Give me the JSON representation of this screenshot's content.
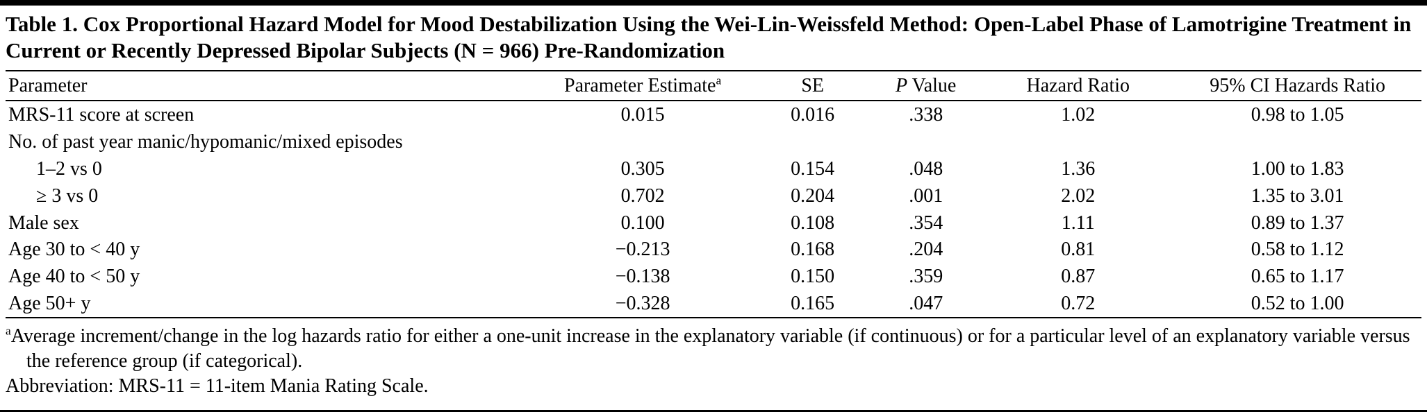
{
  "table": {
    "title": "Table 1. Cox Proportional Hazard Model for Mood Destabilization Using the Wei-Lin-Weissfeld Method: Open-Label Phase of Lamotrigine Treatment in Current or Recently Depressed Bipolar Subjects (N = 966) Pre-Randomization",
    "columns": [
      {
        "label": "Parameter"
      },
      {
        "label": "Parameter Estimate",
        "sup": "a"
      },
      {
        "label": "SE"
      },
      {
        "label": "P Value",
        "italic_prefix": "P"
      },
      {
        "label": "Hazard Ratio"
      },
      {
        "label": "95% CI Hazards Ratio"
      }
    ],
    "rows": [
      {
        "parameter": "MRS-11 score at screen",
        "indent": false,
        "estimate": "0.015",
        "se": "0.016",
        "p_value": ".338",
        "hazard_ratio": "1.02",
        "ci": "0.98 to 1.05"
      },
      {
        "parameter": "No. of past year manic/hypomanic/mixed episodes",
        "indent": false,
        "estimate": "",
        "se": "",
        "p_value": "",
        "hazard_ratio": "",
        "ci": ""
      },
      {
        "parameter": "1–2 vs 0",
        "indent": true,
        "estimate": "0.305",
        "se": "0.154",
        "p_value": ".048",
        "hazard_ratio": "1.36",
        "ci": "1.00 to 1.83"
      },
      {
        "parameter": "≥ 3 vs 0",
        "indent": true,
        "estimate": "0.702",
        "se": "0.204",
        "p_value": ".001",
        "hazard_ratio": "2.02",
        "ci": "1.35 to 3.01"
      },
      {
        "parameter": "Male sex",
        "indent": false,
        "estimate": "0.100",
        "se": "0.108",
        "p_value": ".354",
        "hazard_ratio": "1.11",
        "ci": "0.89 to 1.37"
      },
      {
        "parameter": "Age 30 to < 40 y",
        "indent": false,
        "estimate": "−0.213",
        "se": "0.168",
        "p_value": ".204",
        "hazard_ratio": "0.81",
        "ci": "0.58 to 1.12"
      },
      {
        "parameter": "Age 40 to < 50 y",
        "indent": false,
        "estimate": "−0.138",
        "se": "0.150",
        "p_value": ".359",
        "hazard_ratio": "0.87",
        "ci": "0.65 to 1.17"
      },
      {
        "parameter": "Age 50+ y",
        "indent": false,
        "estimate": "−0.328",
        "se": "0.165",
        "p_value": ".047",
        "hazard_ratio": "0.72",
        "ci": "0.52 to 1.00"
      }
    ],
    "footnote_a": {
      "marker": "a",
      "text": "Average increment/change in the log hazards ratio for either a one-unit increase in the explanatory variable (if continuous) or for a particular level of an explanatory variable versus the reference group (if categorical)."
    },
    "abbreviation": "Abbreviation: MRS-11 = 11-item Mania Rating Scale."
  }
}
